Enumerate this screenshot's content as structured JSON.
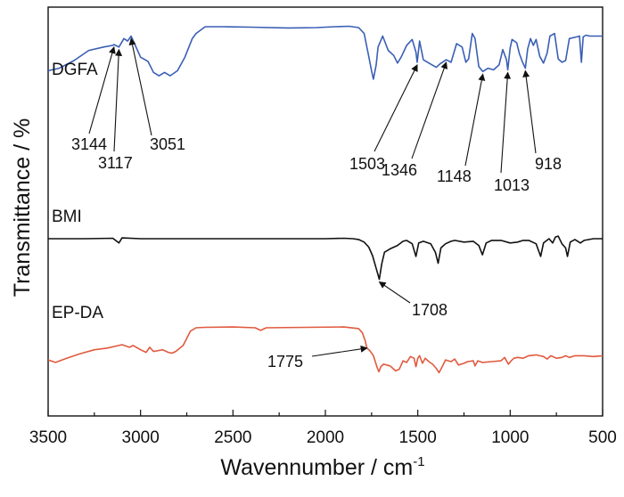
{
  "chart_data": {
    "type": "line",
    "xlabel": "Wavennumber / cm",
    "xlabel_sup": "-1",
    "ylabel": "Transmittance / %",
    "xlim": [
      3500,
      500
    ],
    "x_reversed": true,
    "y_tick_labels_shown": false,
    "x_ticks": [
      3500,
      3000,
      2500,
      2000,
      1500,
      1000,
      500
    ],
    "x_tick_labels": [
      "3500",
      "3000",
      "2500",
      "2000",
      "1500",
      "1000",
      "500"
    ],
    "series": [
      {
        "name": "DGFA",
        "color": "#3a5fb5",
        "points": [
          [
            3500,
            4.8
          ],
          [
            3440,
            5.1
          ],
          [
            3360,
            6.0
          ],
          [
            3280,
            7.2
          ],
          [
            3200,
            7.6
          ],
          [
            3150,
            7.8
          ],
          [
            3144,
            7.9
          ],
          [
            3117,
            7.6
          ],
          [
            3090,
            8.6
          ],
          [
            3070,
            8.3
          ],
          [
            3051,
            8.9
          ],
          [
            3035,
            8.1
          ],
          [
            3000,
            6.4
          ],
          [
            2960,
            5.9
          ],
          [
            2930,
            4.6
          ],
          [
            2900,
            4.2
          ],
          [
            2870,
            4.6
          ],
          [
            2840,
            4.2
          ],
          [
            2800,
            4.8
          ],
          [
            2760,
            6.4
          ],
          [
            2720,
            8.6
          ],
          [
            2700,
            9.2
          ],
          [
            2650,
            10.0
          ],
          [
            2550,
            10.0
          ],
          [
            2400,
            9.95
          ],
          [
            2200,
            9.85
          ],
          [
            2050,
            9.9
          ],
          [
            1950,
            10.0
          ],
          [
            1870,
            10.05
          ],
          [
            1820,
            9.9
          ],
          [
            1790,
            9.2
          ],
          [
            1770,
            7.0
          ],
          [
            1750,
            4.8
          ],
          [
            1740,
            3.8
          ],
          [
            1725,
            5.5
          ],
          [
            1715,
            7.6
          ],
          [
            1690,
            8.9
          ],
          [
            1660,
            7.2
          ],
          [
            1630,
            6.6
          ],
          [
            1610,
            5.7
          ],
          [
            1590,
            6.4
          ],
          [
            1560,
            7.8
          ],
          [
            1530,
            8.5
          ],
          [
            1510,
            7.0
          ],
          [
            1503,
            5.8
          ],
          [
            1490,
            8.3
          ],
          [
            1470,
            6.1
          ],
          [
            1440,
            5.7
          ],
          [
            1400,
            5.2
          ],
          [
            1380,
            5.6
          ],
          [
            1346,
            6.1
          ],
          [
            1320,
            5.8
          ],
          [
            1290,
            8.0
          ],
          [
            1260,
            7.6
          ],
          [
            1240,
            5.8
          ],
          [
            1225,
            6.2
          ],
          [
            1205,
            9.2
          ],
          [
            1190,
            8.6
          ],
          [
            1170,
            5.3
          ],
          [
            1148,
            4.7
          ],
          [
            1120,
            5.1
          ],
          [
            1090,
            4.9
          ],
          [
            1060,
            5.5
          ],
          [
            1040,
            7.3
          ],
          [
            1020,
            6.1
          ],
          [
            1013,
            4.9
          ],
          [
            1000,
            7.5
          ],
          [
            990,
            8.5
          ],
          [
            965,
            8.1
          ],
          [
            950,
            6.8
          ],
          [
            935,
            5.9
          ],
          [
            918,
            5.1
          ],
          [
            905,
            7.4
          ],
          [
            890,
            8.6
          ],
          [
            875,
            7.8
          ],
          [
            860,
            8.5
          ],
          [
            840,
            6.5
          ],
          [
            820,
            5.7
          ],
          [
            800,
            6.9
          ],
          [
            785,
            8.9
          ],
          [
            760,
            9.2
          ],
          [
            740,
            6.2
          ],
          [
            720,
            5.8
          ],
          [
            700,
            6.0
          ],
          [
            680,
            8.6
          ],
          [
            640,
            8.8
          ],
          [
            625,
            8.9
          ],
          [
            615,
            5.8
          ],
          [
            605,
            8.8
          ],
          [
            590,
            9.0
          ],
          [
            570,
            8.9
          ],
          [
            550,
            8.9
          ],
          [
            520,
            8.9
          ],
          [
            500,
            8.9
          ]
        ]
      },
      {
        "name": "BMI",
        "color": "#111111",
        "points": [
          [
            3500,
            0.0
          ],
          [
            3300,
            0.0
          ],
          [
            3150,
            0.05
          ],
          [
            3117,
            -0.5
          ],
          [
            3100,
            0.1
          ],
          [
            3000,
            0.0
          ],
          [
            2800,
            0.0
          ],
          [
            2600,
            0.0
          ],
          [
            2400,
            0.0
          ],
          [
            2200,
            0.0
          ],
          [
            2000,
            0.0
          ],
          [
            1900,
            0.05
          ],
          [
            1850,
            0.0
          ],
          [
            1820,
            -0.1
          ],
          [
            1790,
            -0.4
          ],
          [
            1765,
            -1.0
          ],
          [
            1745,
            -2.0
          ],
          [
            1725,
            -3.5
          ],
          [
            1708,
            -4.8
          ],
          [
            1695,
            -3.0
          ],
          [
            1680,
            -1.6
          ],
          [
            1650,
            -1.2
          ],
          [
            1610,
            -0.8
          ],
          [
            1580,
            -0.3
          ],
          [
            1560,
            -0.2
          ],
          [
            1530,
            -0.6
          ],
          [
            1510,
            -2.1
          ],
          [
            1495,
            -0.5
          ],
          [
            1470,
            -0.3
          ],
          [
            1430,
            -0.6
          ],
          [
            1405,
            -1.6
          ],
          [
            1390,
            -2.9
          ],
          [
            1375,
            -1.1
          ],
          [
            1350,
            -0.6
          ],
          [
            1320,
            -0.3
          ],
          [
            1300,
            -0.2
          ],
          [
            1250,
            -0.4
          ],
          [
            1200,
            -0.3
          ],
          [
            1170,
            -0.8
          ],
          [
            1150,
            -1.9
          ],
          [
            1130,
            -0.5
          ],
          [
            1100,
            -0.2
          ],
          [
            1050,
            -0.2
          ],
          [
            1000,
            -0.5
          ],
          [
            960,
            -0.4
          ],
          [
            930,
            -0.2
          ],
          [
            900,
            -0.2
          ],
          [
            860,
            -0.6
          ],
          [
            835,
            -2.1
          ],
          [
            820,
            -0.5
          ],
          [
            790,
            0.0
          ],
          [
            770,
            -0.5
          ],
          [
            755,
            0.2
          ],
          [
            740,
            0.3
          ],
          [
            720,
            -0.6
          ],
          [
            700,
            -1.1
          ],
          [
            690,
            -2.1
          ],
          [
            675,
            -0.4
          ],
          [
            650,
            -0.1
          ],
          [
            620,
            -0.5
          ],
          [
            600,
            -0.2
          ],
          [
            550,
            0.0
          ],
          [
            520,
            0.0
          ],
          [
            500,
            0.0
          ]
        ]
      },
      {
        "name": "EP-DA",
        "color": "#e05a3e",
        "points": [
          [
            3500,
            -7.8
          ],
          [
            3460,
            -8.1
          ],
          [
            3400,
            -7.6
          ],
          [
            3330,
            -7.1
          ],
          [
            3250,
            -6.6
          ],
          [
            3180,
            -6.4
          ],
          [
            3100,
            -6.0
          ],
          [
            3060,
            -6.3
          ],
          [
            3040,
            -6.1
          ],
          [
            3000,
            -6.6
          ],
          [
            2970,
            -6.9
          ],
          [
            2950,
            -6.3
          ],
          [
            2930,
            -6.8
          ],
          [
            2880,
            -6.6
          ],
          [
            2850,
            -6.9
          ],
          [
            2830,
            -7.0
          ],
          [
            2810,
            -6.8
          ],
          [
            2770,
            -6.1
          ],
          [
            2730,
            -4.4
          ],
          [
            2700,
            -4.0
          ],
          [
            2650,
            -3.95
          ],
          [
            2500,
            -3.9
          ],
          [
            2380,
            -4.0
          ],
          [
            2350,
            -4.3
          ],
          [
            2320,
            -4.0
          ],
          [
            2100,
            -3.95
          ],
          [
            1900,
            -3.9
          ],
          [
            1820,
            -4.1
          ],
          [
            1800,
            -4.6
          ],
          [
            1785,
            -5.5
          ],
          [
            1775,
            -6.4
          ],
          [
            1760,
            -6.7
          ],
          [
            1740,
            -7.3
          ],
          [
            1720,
            -8.7
          ],
          [
            1710,
            -9.2
          ],
          [
            1700,
            -8.6
          ],
          [
            1685,
            -8.3
          ],
          [
            1650,
            -8.5
          ],
          [
            1620,
            -9.1
          ],
          [
            1600,
            -8.9
          ],
          [
            1580,
            -7.9
          ],
          [
            1560,
            -8.1
          ],
          [
            1540,
            -7.4
          ],
          [
            1520,
            -7.6
          ],
          [
            1510,
            -8.6
          ],
          [
            1500,
            -7.6
          ],
          [
            1490,
            -7.3
          ],
          [
            1475,
            -8.2
          ],
          [
            1460,
            -7.6
          ],
          [
            1440,
            -8.0
          ],
          [
            1420,
            -8.3
          ],
          [
            1400,
            -8.8
          ],
          [
            1385,
            -9.3
          ],
          [
            1370,
            -8.7
          ],
          [
            1350,
            -7.8
          ],
          [
            1320,
            -8.0
          ],
          [
            1300,
            -7.7
          ],
          [
            1280,
            -8.4
          ],
          [
            1250,
            -8.2
          ],
          [
            1230,
            -8.0
          ],
          [
            1200,
            -7.9
          ],
          [
            1190,
            -8.5
          ],
          [
            1175,
            -7.9
          ],
          [
            1150,
            -8.1
          ],
          [
            1100,
            -8.0
          ],
          [
            1050,
            -7.9
          ],
          [
            1030,
            -7.5
          ],
          [
            1010,
            -8.3
          ],
          [
            995,
            -7.9
          ],
          [
            980,
            -7.6
          ],
          [
            960,
            -7.5
          ],
          [
            930,
            -7.6
          ],
          [
            900,
            -7.3
          ],
          [
            860,
            -7.2
          ],
          [
            840,
            -7.3
          ],
          [
            820,
            -7.4
          ],
          [
            800,
            -7.7
          ],
          [
            780,
            -7.3
          ],
          [
            750,
            -7.6
          ],
          [
            720,
            -7.5
          ],
          [
            700,
            -7.3
          ],
          [
            680,
            -7.5
          ],
          [
            650,
            -7.3
          ],
          [
            600,
            -7.3
          ],
          [
            550,
            -7.4
          ],
          [
            500,
            -7.3
          ]
        ]
      }
    ],
    "annotations": [
      {
        "text": "3144",
        "x": 3144,
        "series": "DGFA"
      },
      {
        "text": "3117",
        "x": 3117,
        "series": "DGFA"
      },
      {
        "text": "3051",
        "x": 3051,
        "series": "DGFA"
      },
      {
        "text": "1503",
        "x": 1503,
        "series": "DGFA"
      },
      {
        "text": "1346",
        "x": 1346,
        "series": "DGFA"
      },
      {
        "text": "1148",
        "x": 1148,
        "series": "DGFA"
      },
      {
        "text": "1013",
        "x": 1013,
        "series": "DGFA"
      },
      {
        "text": "918",
        "x": 918,
        "series": "DGFA"
      },
      {
        "text": "1708",
        "x": 1708,
        "series": "BMI"
      },
      {
        "text": "1775",
        "x": 1775,
        "series": "EP-DA"
      }
    ]
  }
}
